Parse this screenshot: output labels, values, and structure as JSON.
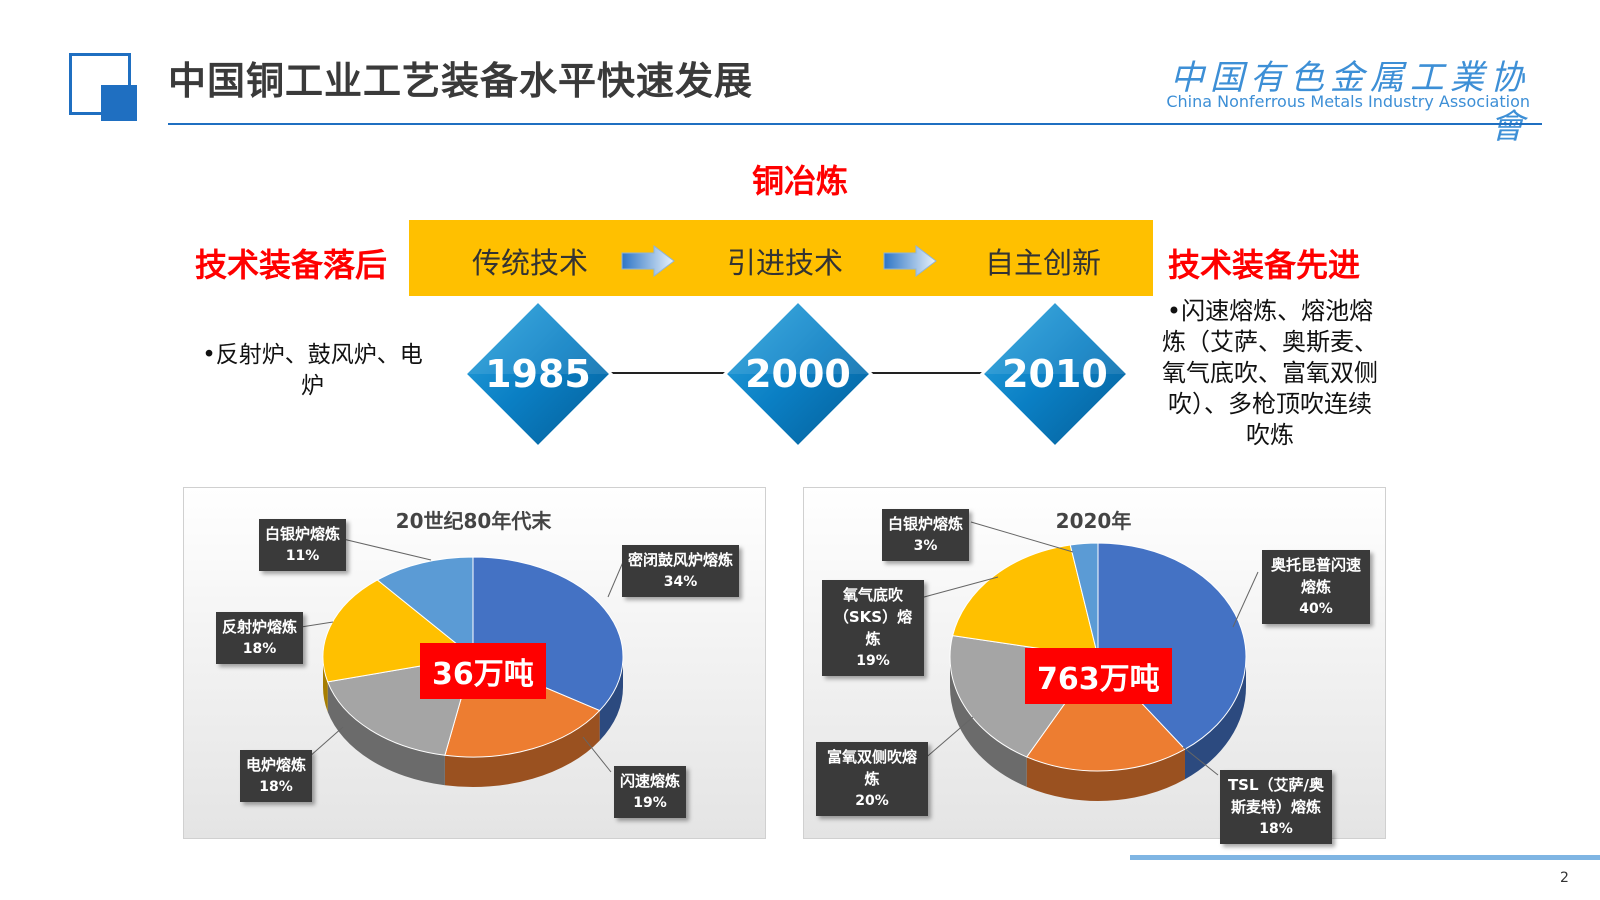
{
  "header": {
    "title": "中国铜工业工艺装备水平快速发展",
    "assoc_cn": "中国有色金属工業协會",
    "assoc_en": "China Nonferrous Metals Industry Association"
  },
  "section_title": "铜冶炼",
  "band": {
    "stage1": "传统技术",
    "stage2": "引进技术",
    "stage3": "自主创新"
  },
  "left_status": "技术装备落后",
  "right_status": "技术装备先进",
  "left_bullet": "•反射炉、鼓风炉、电炉",
  "right_bullet": "•闪速熔炼、熔池熔炼（艾萨、奥斯麦、氧气底吹、富氧双侧吹）、多枪顶吹连续吹炼",
  "timeline": {
    "years": [
      "1985",
      "2000",
      "2010"
    ]
  },
  "colors": {
    "blue": "#4472c4",
    "orange": "#ed7d31",
    "gray": "#a5a5a5",
    "yellow": "#ffc000",
    "lightblue": "#5b9bd5",
    "accent": "#1f6fc1"
  },
  "chart_data": [
    {
      "type": "pie",
      "title": "20世纪80年代末",
      "total_label": "36万吨",
      "slices": [
        {
          "label": "密闭鼓风炉熔炼",
          "value": 34,
          "pct": "34%",
          "color": "#4472c4"
        },
        {
          "label": "闪速熔炼",
          "value": 19,
          "pct": "19%",
          "color": "#ed7d31"
        },
        {
          "label": "电炉熔炼",
          "value": 18,
          "pct": "18%",
          "color": "#a5a5a5"
        },
        {
          "label": "反射炉熔炼",
          "value": 18,
          "pct": "18%",
          "color": "#ffc000"
        },
        {
          "label": "白银炉熔炼",
          "value": 11,
          "pct": "11%",
          "color": "#5b9bd5"
        }
      ]
    },
    {
      "type": "pie",
      "title": "2020年",
      "total_label": "763万吨",
      "slices": [
        {
          "label": "奥托昆普闪速熔炼",
          "value": 40,
          "pct": "40%",
          "color": "#4472c4"
        },
        {
          "label": "TSL（艾萨/奥斯麦特）熔炼",
          "value": 18,
          "pct": "18%",
          "color": "#ed7d31"
        },
        {
          "label": "富氧双侧吹熔炼",
          "value": 20,
          "pct": "20%",
          "color": "#a5a5a5"
        },
        {
          "label": "氧气底吹（SKS）熔炼",
          "value": 19,
          "pct": "19%",
          "color": "#ffc000"
        },
        {
          "label": "白银炉熔炼",
          "value": 3,
          "pct": "3%",
          "color": "#5b9bd5"
        }
      ]
    }
  ],
  "page_number": "2"
}
